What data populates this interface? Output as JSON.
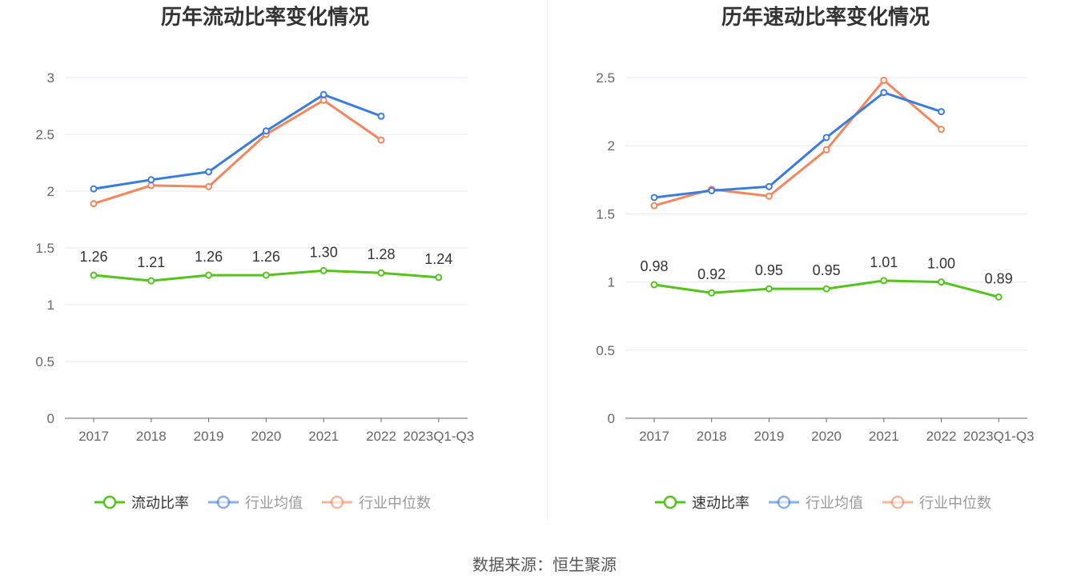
{
  "chart_data": [
    {
      "type": "line",
      "title": "历年流动比率变化情况",
      "categories": [
        "2017",
        "2018",
        "2019",
        "2020",
        "2021",
        "2022",
        "2023Q1-Q3"
      ],
      "ylim": [
        0,
        3
      ],
      "yticks": [
        "0",
        "0.5",
        "1",
        "1.5",
        "2",
        "2.5",
        "3"
      ],
      "ytick_values": [
        0,
        0.5,
        1,
        1.5,
        2,
        2.5,
        3
      ],
      "grid": true,
      "legend_position": "bottom",
      "series": [
        {
          "name": "流动比率",
          "color": "#52c41a",
          "values": [
            1.26,
            1.21,
            1.26,
            1.26,
            1.3,
            1.28,
            1.24
          ],
          "labels": [
            "1.26",
            "1.21",
            "1.26",
            "1.26",
            "1.30",
            "1.28",
            "1.24"
          ]
        },
        {
          "name": "行业均值",
          "color": "#3a7be0",
          "values": [
            2.02,
            2.1,
            2.17,
            2.53,
            2.85,
            2.66,
            null
          ]
        },
        {
          "name": "行业中位数",
          "color": "#f5855c",
          "values": [
            1.89,
            2.05,
            2.04,
            2.5,
            2.8,
            2.45,
            null
          ]
        }
      ]
    },
    {
      "type": "line",
      "title": "历年速动比率变化情况",
      "categories": [
        "2017",
        "2018",
        "2019",
        "2020",
        "2021",
        "2022",
        "2023Q1-Q3"
      ],
      "ylim": [
        0,
        2.5
      ],
      "yticks": [
        "0",
        "0.5",
        "1",
        "1.5",
        "2",
        "2.5"
      ],
      "ytick_values": [
        0,
        0.5,
        1,
        1.5,
        2,
        2.5
      ],
      "grid": true,
      "legend_position": "bottom",
      "series": [
        {
          "name": "速动比率",
          "color": "#52c41a",
          "values": [
            0.98,
            0.92,
            0.95,
            0.95,
            1.01,
            1.0,
            0.89
          ],
          "labels": [
            "0.98",
            "0.92",
            "0.95",
            "0.95",
            "1.01",
            "1.00",
            "0.89"
          ]
        },
        {
          "name": "行业均值",
          "color": "#3a7be0",
          "values": [
            1.62,
            1.67,
            1.7,
            2.06,
            2.39,
            2.25,
            null
          ]
        },
        {
          "name": "行业中位数",
          "color": "#f5855c",
          "values": [
            1.56,
            1.68,
            1.63,
            1.97,
            2.48,
            2.12,
            null
          ]
        }
      ]
    }
  ],
  "source": "数据来源：恒生聚源"
}
